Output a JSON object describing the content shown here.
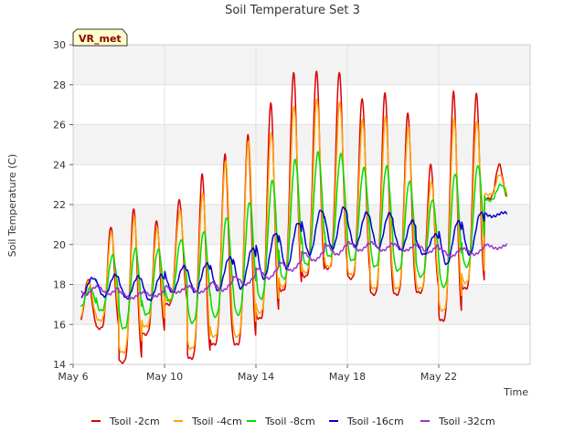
{
  "chart_data": {
    "type": "line",
    "title": "Soil Temperature Set 3",
    "xlabel": "Time",
    "ylabel": "Soil Temperature (C)",
    "badge": "VR_met",
    "ylim": [
      14,
      30
    ],
    "xlim": [
      0,
      20
    ],
    "x_unit": "days since May 6",
    "y_ticks": [
      14,
      16,
      18,
      20,
      22,
      24,
      26,
      28,
      30
    ],
    "x_ticks": [
      {
        "value": 0,
        "label": "May 6"
      },
      {
        "value": 4,
        "label": "May 10"
      },
      {
        "value": 8,
        "label": "May 14"
      },
      {
        "value": 12,
        "label": "May 18"
      },
      {
        "value": 16,
        "label": "May 22"
      }
    ],
    "grid": true,
    "legend_position": "bottom",
    "series": [
      {
        "name": "Tsoil -2cm",
        "color": "#dd0000",
        "peak_offset": 0.65,
        "sharpness": 2.2,
        "days": [
          {
            "max": 18.0,
            "min": 16.0
          },
          {
            "max": 20.8,
            "min": 15.8
          },
          {
            "max": 21.9,
            "min": 14.1
          },
          {
            "max": 21.1,
            "min": 15.5
          },
          {
            "max": 22.1,
            "min": 17.0
          },
          {
            "max": 23.4,
            "min": 14.3
          },
          {
            "max": 24.4,
            "min": 15.0
          },
          {
            "max": 25.3,
            "min": 15.0
          },
          {
            "max": 26.9,
            "min": 16.3
          },
          {
            "max": 28.6,
            "min": 17.7
          },
          {
            "max": 28.7,
            "min": 18.4
          },
          {
            "max": 28.8,
            "min": 18.8
          },
          {
            "max": 27.3,
            "min": 18.3
          },
          {
            "max": 27.7,
            "min": 17.5
          },
          {
            "max": 26.9,
            "min": 17.5
          },
          {
            "max": 23.6,
            "min": 17.6
          },
          {
            "max": 27.6,
            "min": 16.2
          },
          {
            "max": 27.9,
            "min": 17.8
          },
          {
            "max": 24.0,
            "min": 22.3
          }
        ]
      },
      {
        "name": "Tsoil -4cm",
        "color": "#ffa500",
        "peak_offset": 0.67,
        "sharpness": 2.0,
        "days": [
          {
            "max": 17.9,
            "min": 16.3
          },
          {
            "max": 20.5,
            "min": 16.2
          },
          {
            "max": 21.4,
            "min": 14.6
          },
          {
            "max": 20.7,
            "min": 15.9
          },
          {
            "max": 21.6,
            "min": 17.2
          },
          {
            "max": 22.4,
            "min": 14.8
          },
          {
            "max": 24.1,
            "min": 15.4
          },
          {
            "max": 25.2,
            "min": 15.4
          },
          {
            "max": 25.5,
            "min": 16.6
          },
          {
            "max": 26.9,
            "min": 17.9
          },
          {
            "max": 27.3,
            "min": 18.6
          },
          {
            "max": 27.2,
            "min": 18.9
          },
          {
            "max": 26.2,
            "min": 18.5
          },
          {
            "max": 26.4,
            "min": 17.8
          },
          {
            "max": 26.2,
            "min": 17.8
          },
          {
            "max": 22.8,
            "min": 17.8
          },
          {
            "max": 26.3,
            "min": 16.7
          },
          {
            "max": 26.5,
            "min": 18.1
          },
          {
            "max": 23.5,
            "min": 22.5
          }
        ]
      },
      {
        "name": "Tsoil -8cm",
        "color": "#00dd00",
        "peak_offset": 0.72,
        "sharpness": 1.5,
        "days": [
          {
            "max": 17.6,
            "min": 16.8
          },
          {
            "max": 19.4,
            "min": 16.7
          },
          {
            "max": 19.8,
            "min": 15.8
          },
          {
            "max": 19.7,
            "min": 16.5
          },
          {
            "max": 20.2,
            "min": 17.2
          },
          {
            "max": 20.6,
            "min": 16.1
          },
          {
            "max": 21.3,
            "min": 16.4
          },
          {
            "max": 22.0,
            "min": 16.5
          },
          {
            "max": 23.1,
            "min": 17.3
          },
          {
            "max": 24.2,
            "min": 18.3
          },
          {
            "max": 24.6,
            "min": 19.0
          },
          {
            "max": 24.6,
            "min": 19.4
          },
          {
            "max": 23.8,
            "min": 19.2
          },
          {
            "max": 24.0,
            "min": 18.9
          },
          {
            "max": 23.3,
            "min": 18.7
          },
          {
            "max": 22.1,
            "min": 18.4
          },
          {
            "max": 23.5,
            "min": 17.9
          },
          {
            "max": 24.1,
            "min": 18.9
          },
          {
            "max": 23.0,
            "min": 22.2
          }
        ]
      },
      {
        "name": "Tsoil -16cm",
        "color": "#0000cc",
        "peak_offset": 0.85,
        "sharpness": 1.0,
        "days": [
          {
            "max": 18.3,
            "min": 17.4
          },
          {
            "max": 18.5,
            "min": 17.4
          },
          {
            "max": 18.4,
            "min": 17.3
          },
          {
            "max": 18.4,
            "min": 17.2
          },
          {
            "max": 18.9,
            "min": 17.6
          },
          {
            "max": 19.0,
            "min": 17.6
          },
          {
            "max": 19.3,
            "min": 17.7
          },
          {
            "max": 19.7,
            "min": 17.8
          },
          {
            "max": 20.5,
            "min": 18.3
          },
          {
            "max": 21.0,
            "min": 18.8
          },
          {
            "max": 21.7,
            "min": 19.5
          },
          {
            "max": 21.9,
            "min": 19.8
          },
          {
            "max": 21.6,
            "min": 19.9
          },
          {
            "max": 21.6,
            "min": 19.8
          },
          {
            "max": 21.3,
            "min": 19.7
          },
          {
            "max": 20.4,
            "min": 19.5
          },
          {
            "max": 21.1,
            "min": 19.0
          },
          {
            "max": 21.6,
            "min": 19.5
          },
          {
            "max": 21.6,
            "min": 21.4
          }
        ]
      },
      {
        "name": "Tsoil -32cm",
        "color": "#9933cc",
        "peak_offset": 0.05,
        "sharpness": 1.0,
        "days": [
          {
            "max": 17.9,
            "min": 17.5
          },
          {
            "max": 17.9,
            "min": 17.5
          },
          {
            "max": 17.6,
            "min": 17.3
          },
          {
            "max": 17.6,
            "min": 17.4
          },
          {
            "max": 17.9,
            "min": 17.6
          },
          {
            "max": 17.9,
            "min": 17.6
          },
          {
            "max": 18.1,
            "min": 17.7
          },
          {
            "max": 18.4,
            "min": 18.0
          },
          {
            "max": 18.8,
            "min": 18.3
          },
          {
            "max": 19.1,
            "min": 18.7
          },
          {
            "max": 19.6,
            "min": 19.2
          },
          {
            "max": 20.0,
            "min": 19.5
          },
          {
            "max": 20.1,
            "min": 19.7
          },
          {
            "max": 20.1,
            "min": 19.7
          },
          {
            "max": 20.0,
            "min": 19.7
          },
          {
            "max": 20.0,
            "min": 19.6
          },
          {
            "max": 19.8,
            "min": 19.4
          },
          {
            "max": 19.8,
            "min": 19.5
          },
          {
            "max": 20.0,
            "min": 19.8
          }
        ]
      }
    ]
  }
}
